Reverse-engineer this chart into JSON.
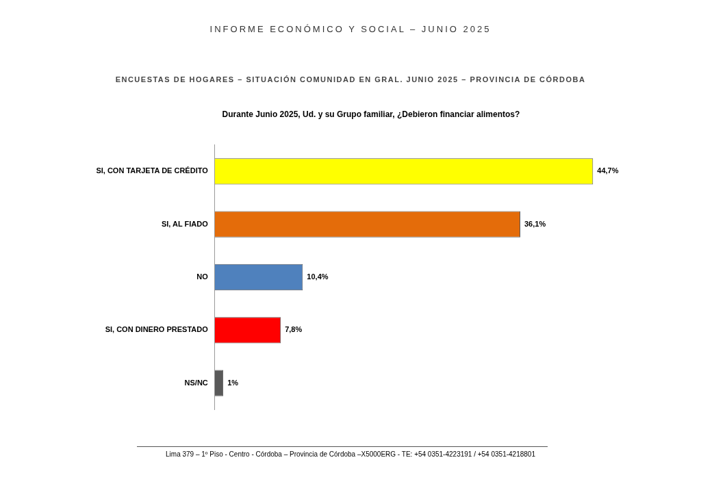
{
  "chart_data": {
    "type": "bar",
    "orientation": "horizontal",
    "title": "INFORME ECONÓMICO Y SOCIAL – JUNIO 2025",
    "subtitle": "ENCUESTAS DE HOGARES – SITUACIÓN COMUNIDAD EN GRAL. JUNIO 2025 – PROVINCIA DE CÓRDOBA",
    "annotations": [
      "Durante Junio 2025, Ud. y su Grupo familiar, ¿Debieron financiar alimentos?",
      "Lima 379 – 1º Piso - Centro - Córdoba – Provincia de Córdoba –X5000ERG - TE: +54 0351-4223191 / +54 0351-4218801"
    ],
    "categories": [
      "SI, CON TARJETA DE CRÉDITO",
      "SI, AL FIADO",
      "NO",
      "SI, CON DINERO PRESTADO",
      "NS/NC"
    ],
    "values": [
      44.7,
      36.1,
      10.4,
      7.8,
      1
    ],
    "value_labels": [
      "44,7%",
      "36,1%",
      "10,4%",
      "7,8%",
      "1%"
    ],
    "colors": [
      "#ffff00",
      "#e46c0a",
      "#4f81bd",
      "#ff0000",
      "#595959"
    ],
    "tick_labels": "y",
    "grid": false,
    "legend": false
  }
}
